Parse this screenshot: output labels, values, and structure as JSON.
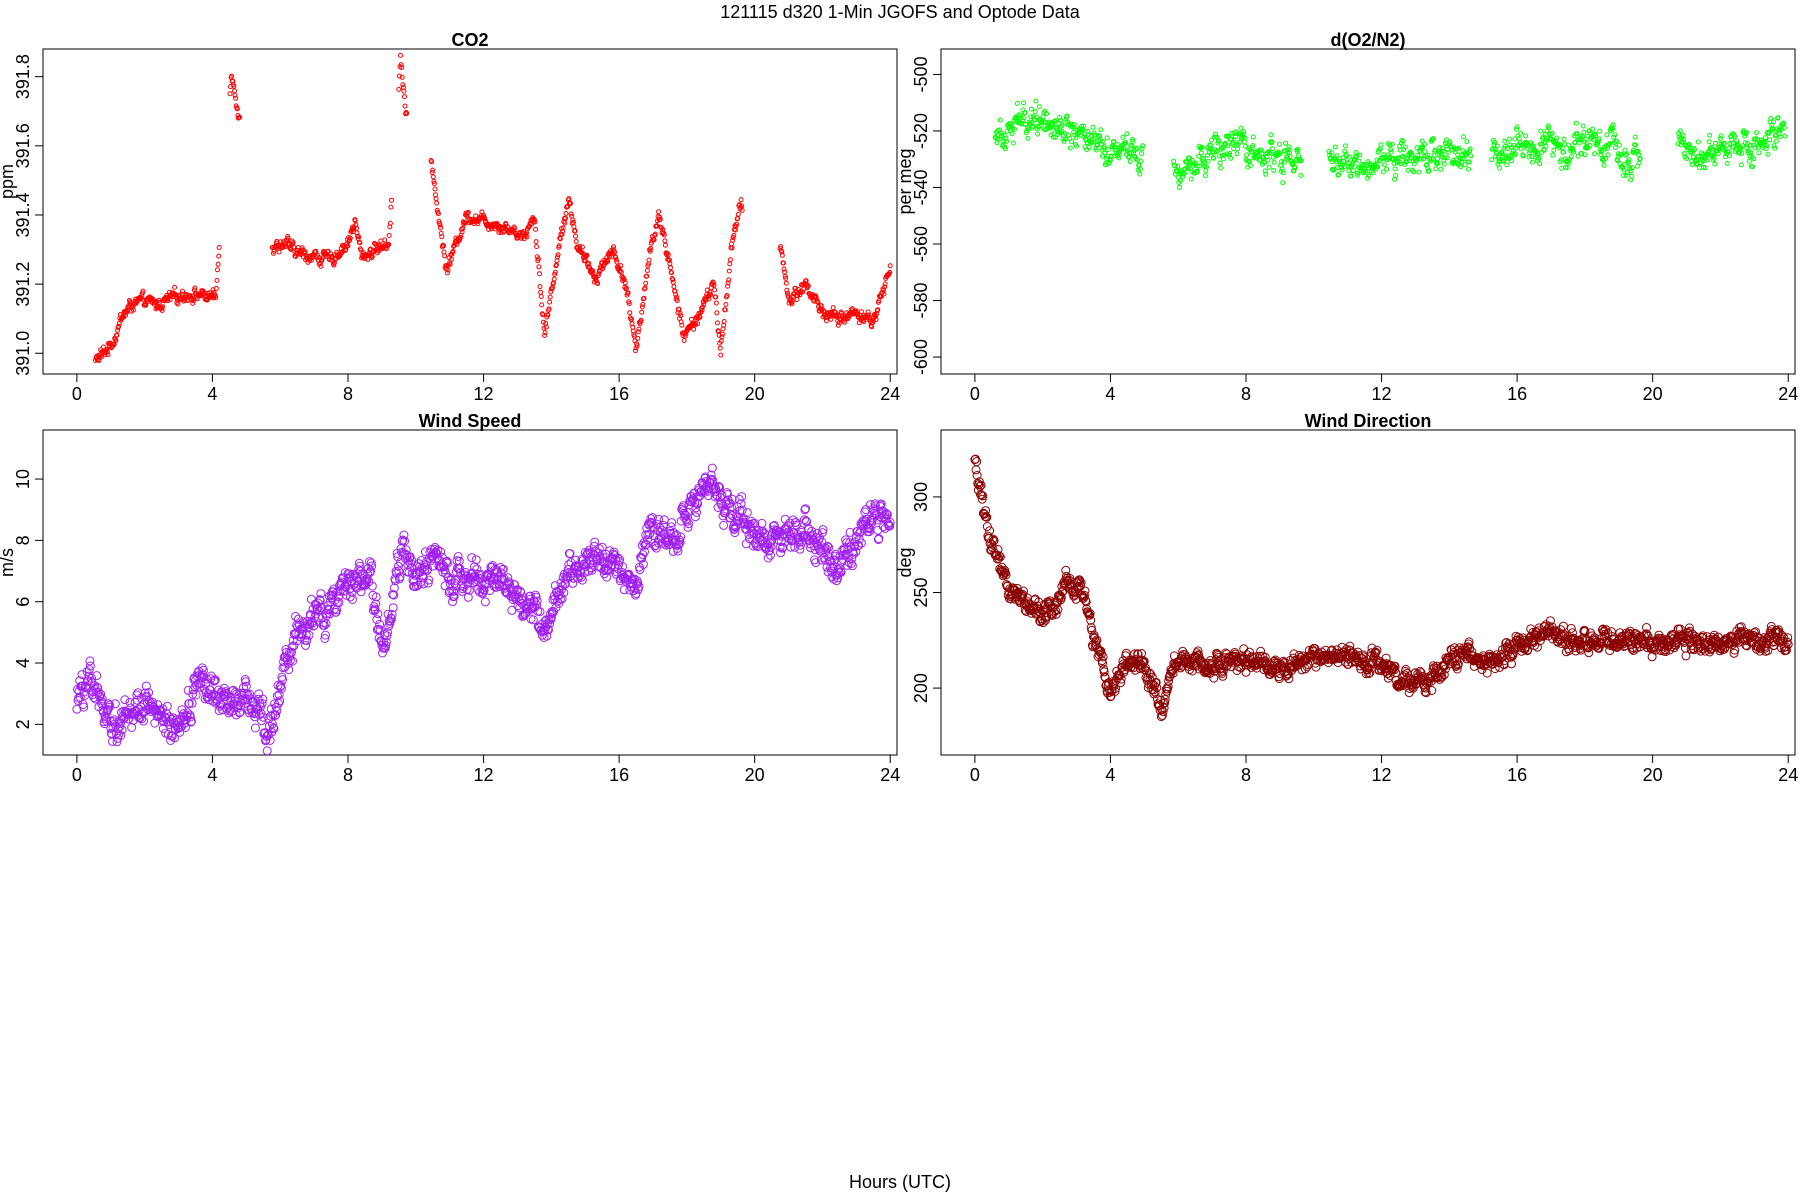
{
  "figure": {
    "title": "121115   d320   1-Min  JGOFS and Optode Data",
    "xlabel": "Hours (UTC)"
  },
  "chart_data": [
    {
      "id": "co2",
      "type": "scatter",
      "title": "CO2",
      "xlabel": "",
      "ylabel": "ppm",
      "xlim": [
        -1,
        24.2
      ],
      "ylim": [
        390.94,
        391.88
      ],
      "xticks": [
        0,
        4,
        8,
        12,
        16,
        20,
        24
      ],
      "yticks": [
        391.0,
        391.2,
        391.4,
        391.6,
        391.8
      ],
      "ytick_labels": [
        "391.0",
        "391.2",
        "391.4",
        "391.6",
        "391.8"
      ],
      "color": "#ff0000",
      "marker": "small-circle",
      "anchors": [
        [
          0.55,
          390.98
        ],
        [
          0.8,
          391.0
        ],
        [
          1.1,
          391.04
        ],
        [
          1.3,
          391.1
        ],
        [
          1.6,
          391.14
        ],
        [
          2.0,
          391.15
        ],
        [
          2.4,
          391.14
        ],
        [
          2.8,
          391.16
        ],
        [
          3.2,
          391.17
        ],
        [
          3.6,
          391.17
        ],
        [
          4.1,
          391.16
        ],
        [
          4.55,
          391.82
        ],
        [
          4.75,
          391.71
        ],
        [
          5.8,
          391.3
        ],
        [
          6.1,
          391.32
        ],
        [
          6.5,
          391.29
        ],
        [
          7.0,
          391.28
        ],
        [
          7.5,
          391.27
        ],
        [
          8.0,
          391.32
        ],
        [
          8.2,
          391.38
        ],
        [
          8.4,
          391.28
        ],
        [
          8.8,
          391.3
        ],
        [
          9.2,
          391.32
        ],
        [
          9.55,
          391.86
        ],
        [
          9.7,
          391.7
        ],
        [
          10.5,
          391.52
        ],
        [
          10.9,
          391.24
        ],
        [
          11.5,
          391.4
        ],
        [
          12.5,
          391.37
        ],
        [
          13.2,
          391.34
        ],
        [
          13.5,
          391.4
        ],
        [
          13.8,
          391.05
        ],
        [
          14.1,
          391.24
        ],
        [
          14.5,
          391.45
        ],
        [
          14.8,
          391.3
        ],
        [
          15.3,
          391.22
        ],
        [
          15.8,
          391.3
        ],
        [
          16.2,
          391.2
        ],
        [
          16.5,
          391.0
        ],
        [
          16.9,
          391.3
        ],
        [
          17.2,
          391.4
        ],
        [
          17.6,
          391.2
        ],
        [
          17.9,
          391.05
        ],
        [
          18.3,
          391.1
        ],
        [
          18.8,
          391.2
        ],
        [
          19.0,
          391.0
        ],
        [
          19.3,
          391.3
        ],
        [
          19.6,
          391.43
        ],
        [
          20.8,
          391.3
        ],
        [
          21.0,
          391.15
        ],
        [
          21.5,
          391.2
        ],
        [
          22.0,
          391.12
        ],
        [
          22.5,
          391.1
        ],
        [
          23.0,
          391.12
        ],
        [
          23.5,
          391.09
        ],
        [
          24.0,
          391.25
        ]
      ],
      "gaps": [
        [
          4.2,
          4.5
        ],
        [
          4.8,
          5.75
        ],
        [
          9.3,
          9.5
        ],
        [
          9.75,
          10.45
        ],
        [
          19.65,
          20.75
        ]
      ]
    },
    {
      "id": "o2n2",
      "type": "scatter",
      "title": "d(O2/N2)",
      "xlabel": "",
      "ylabel": "per meg",
      "xlim": [
        -1,
        24.2
      ],
      "ylim": [
        -606,
        -491
      ],
      "xticks": [
        0,
        4,
        8,
        12,
        16,
        20,
        24
      ],
      "yticks": [
        -600,
        -580,
        -560,
        -540,
        -520,
        -500
      ],
      "ytick_labels": [
        "-600",
        "-580",
        "-560",
        "-540",
        "-520",
        "-500"
      ],
      "color": "#00ff00",
      "marker": "small-circle",
      "anchors": [
        [
          0.6,
          -520
        ],
        [
          1.0,
          -518
        ],
        [
          1.5,
          -516
        ],
        [
          2.0,
          -514
        ],
        [
          2.5,
          -518
        ],
        [
          3.0,
          -520
        ],
        [
          3.5,
          -522
        ],
        [
          4.0,
          -526
        ],
        [
          4.5,
          -525
        ],
        [
          4.9,
          -528
        ],
        [
          5.9,
          -534
        ],
        [
          6.5,
          -530
        ],
        [
          7.0,
          -528
        ],
        [
          7.5,
          -526
        ],
        [
          8.0,
          -528
        ],
        [
          8.5,
          -529
        ],
        [
          9.0,
          -530
        ],
        [
          9.6,
          -532
        ],
        [
          10.5,
          -530
        ],
        [
          11.0,
          -533
        ],
        [
          11.5,
          -532
        ],
        [
          12.0,
          -530
        ],
        [
          12.5,
          -529
        ],
        [
          13.0,
          -528
        ],
        [
          13.5,
          -527
        ],
        [
          14.0,
          -528
        ],
        [
          14.6,
          -530
        ],
        [
          15.3,
          -527
        ],
        [
          15.8,
          -525
        ],
        [
          16.2,
          -524
        ],
        [
          16.8,
          -524
        ],
        [
          17.3,
          -526
        ],
        [
          17.8,
          -525
        ],
        [
          18.3,
          -523
        ],
        [
          18.8,
          -527
        ],
        [
          19.3,
          -530
        ],
        [
          19.6,
          -530
        ],
        [
          20.8,
          -526
        ],
        [
          21.3,
          -527
        ],
        [
          21.8,
          -527
        ],
        [
          22.3,
          -525
        ],
        [
          22.8,
          -525
        ],
        [
          23.3,
          -524
        ],
        [
          23.9,
          -521
        ]
      ],
      "gaps": [
        [
          4.95,
          5.85
        ],
        [
          9.65,
          10.45
        ],
        [
          14.65,
          15.25
        ],
        [
          19.65,
          20.75
        ]
      ]
    },
    {
      "id": "wind-speed",
      "type": "scatter",
      "title": "Wind Speed",
      "xlabel": "",
      "ylabel": "m/s",
      "xlim": [
        -1,
        24.2
      ],
      "ylim": [
        1.0,
        11.6
      ],
      "xticks": [
        0,
        4,
        8,
        12,
        16,
        20,
        24
      ],
      "yticks": [
        2,
        4,
        6,
        8,
        10
      ],
      "ytick_labels": [
        "2",
        "4",
        "6",
        "8",
        "10"
      ],
      "color": "#a020f0",
      "marker": "circle",
      "anchors": [
        [
          0.0,
          2.8
        ],
        [
          0.3,
          3.3
        ],
        [
          0.7,
          3.0
        ],
        [
          1.0,
          2.0
        ],
        [
          1.5,
          2.4
        ],
        [
          2.0,
          2.8
        ],
        [
          2.5,
          2.1
        ],
        [
          2.8,
          1.5
        ],
        [
          3.2,
          2.3
        ],
        [
          3.6,
          3.5
        ],
        [
          4.0,
          3.0
        ],
        [
          4.5,
          2.6
        ],
        [
          5.0,
          2.9
        ],
        [
          5.4,
          2.5
        ],
        [
          5.7,
          1.8
        ],
        [
          6.0,
          3.2
        ],
        [
          6.5,
          4.8
        ],
        [
          7.0,
          5.5
        ],
        [
          7.5,
          5.8
        ],
        [
          8.0,
          6.2
        ],
        [
          8.3,
          6.8
        ],
        [
          8.6,
          7.0
        ],
        [
          8.8,
          6.0
        ],
        [
          9.0,
          4.5
        ],
        [
          9.3,
          5.5
        ],
        [
          9.6,
          7.8
        ],
        [
          10.0,
          7.0
        ],
        [
          10.5,
          7.3
        ],
        [
          11.0,
          6.8
        ],
        [
          11.5,
          7.0
        ],
        [
          12.0,
          6.6
        ],
        [
          12.5,
          6.8
        ],
        [
          13.0,
          6.0
        ],
        [
          13.5,
          5.8
        ],
        [
          13.8,
          5.2
        ],
        [
          14.0,
          6.0
        ],
        [
          14.5,
          6.8
        ],
        [
          15.0,
          7.2
        ],
        [
          15.5,
          7.5
        ],
        [
          16.0,
          7.0
        ],
        [
          16.5,
          6.5
        ],
        [
          16.8,
          8.2
        ],
        [
          17.2,
          8.3
        ],
        [
          17.6,
          8.0
        ],
        [
          18.0,
          9.0
        ],
        [
          18.4,
          9.5
        ],
        [
          18.8,
          9.8
        ],
        [
          19.2,
          8.8
        ],
        [
          19.6,
          8.7
        ],
        [
          20.0,
          8.4
        ],
        [
          20.5,
          7.8
        ],
        [
          21.0,
          8.2
        ],
        [
          21.5,
          8.4
        ],
        [
          22.0,
          7.8
        ],
        [
          22.3,
          7.2
        ],
        [
          22.6,
          7.0
        ],
        [
          23.0,
          8.2
        ],
        [
          23.5,
          9.0
        ],
        [
          24.0,
          8.5
        ]
      ],
      "gaps": []
    },
    {
      "id": "wind-direction",
      "type": "scatter",
      "title": "Wind Direction",
      "xlabel": "",
      "ylabel": "deg",
      "xlim": [
        -1,
        24.2
      ],
      "ylim": [
        165,
        335
      ],
      "xticks": [
        0,
        4,
        8,
        12,
        16,
        20,
        24
      ],
      "yticks": [
        200,
        250,
        300
      ],
      "ytick_labels": [
        "200",
        "250",
        "300"
      ],
      "color": "#8b0000",
      "marker": "circle",
      "anchors": [
        [
          0.0,
          318
        ],
        [
          0.2,
          300
        ],
        [
          0.4,
          280
        ],
        [
          0.7,
          268
        ],
        [
          1.0,
          250
        ],
        [
          1.5,
          245
        ],
        [
          2.0,
          238
        ],
        [
          2.5,
          248
        ],
        [
          2.8,
          258
        ],
        [
          3.1,
          255
        ],
        [
          3.4,
          235
        ],
        [
          3.7,
          215
        ],
        [
          4.0,
          198
        ],
        [
          4.4,
          210
        ],
        [
          4.8,
          212
        ],
        [
          5.2,
          205
        ],
        [
          5.5,
          185
        ],
        [
          5.8,
          212
        ],
        [
          6.3,
          215
        ],
        [
          6.8,
          210
        ],
        [
          7.3,
          213
        ],
        [
          7.8,
          215
        ],
        [
          8.3,
          215
        ],
        [
          8.8,
          210
        ],
        [
          9.3,
          213
        ],
        [
          10.0,
          215
        ],
        [
          10.5,
          214
        ],
        [
          11.0,
          216
        ],
        [
          11.5,
          214
        ],
        [
          12.0,
          213
        ],
        [
          12.5,
          205
        ],
        [
          13.0,
          202
        ],
        [
          13.5,
          206
        ],
        [
          14.0,
          214
        ],
        [
          14.5,
          218
        ],
        [
          15.0,
          213
        ],
        [
          15.5,
          216
        ],
        [
          16.0,
          222
        ],
        [
          16.5,
          228
        ],
        [
          17.0,
          230
        ],
        [
          17.5,
          226
        ],
        [
          18.0,
          224
        ],
        [
          18.5,
          225
        ],
        [
          19.0,
          224
        ],
        [
          19.5,
          226
        ],
        [
          20.0,
          222
        ],
        [
          20.5,
          224
        ],
        [
          21.0,
          226
        ],
        [
          21.5,
          222
        ],
        [
          22.0,
          223
        ],
        [
          22.5,
          224
        ],
        [
          23.0,
          222
        ],
        [
          23.5,
          225
        ],
        [
          24.0,
          224
        ]
      ],
      "gaps": []
    }
  ]
}
